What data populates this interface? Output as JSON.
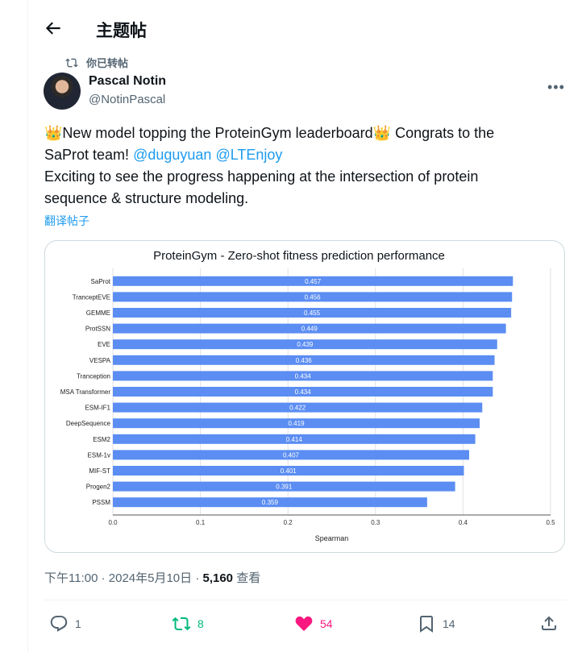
{
  "header": {
    "title": "主题帖"
  },
  "retweet": {
    "label": "你已转帖"
  },
  "author": {
    "name": "Pascal Notin",
    "handle": "@NotinPascal"
  },
  "post": {
    "line1_prefix": "New model topping the ProteinGym leaderboard",
    "line1_suffix": " Congrats to the",
    "line2_prefix": "SaProt team! ",
    "mention1": "@duguyuan",
    "mention2": "@LTEnjoy",
    "line3": "Exciting to see the progress happening at the intersection of protein",
    "line4": "sequence & structure modeling.",
    "emoji": "👑"
  },
  "translate": "翻译帖子",
  "meta": {
    "time": "下午11:00 · 2024年5月10日 · ",
    "views": "5,160",
    "views_label": " 查看"
  },
  "stats": {
    "replies": "1",
    "reposts": "8",
    "likes": "54",
    "bookmarks": "14"
  },
  "colors": {
    "accent": "#1d9bf0",
    "bar": "#5b8df2",
    "repost": "#00ba7c",
    "like": "#f91880"
  },
  "chart_data": {
    "type": "bar",
    "orientation": "horizontal",
    "title": "ProteinGym - Zero-shot fitness prediction performance",
    "xlabel": "Spearman",
    "ylabel": "",
    "xlim": [
      0,
      0.5
    ],
    "xticks": [
      "0.0",
      "0.1",
      "0.2",
      "0.3",
      "0.4",
      "0.5"
    ],
    "grid": true,
    "categories": [
      "SaProt",
      "TranceptEVE",
      "GEMME",
      "ProtSSN",
      "EVE",
      "VESPA",
      "Tranception",
      "MSA Transformer",
      "ESM-IF1",
      "DeepSequence",
      "ESM2",
      "ESM-1v",
      "MIF-ST",
      "Progen2",
      "PSSM"
    ],
    "values": [
      0.457,
      0.456,
      0.455,
      0.449,
      0.439,
      0.436,
      0.434,
      0.434,
      0.422,
      0.419,
      0.414,
      0.407,
      0.401,
      0.391,
      0.359
    ],
    "labels": [
      "0.457",
      "0.456",
      "0.455",
      "0.449",
      "0.439",
      "0.436",
      "0.434",
      "0.434",
      "0.422",
      "0.419",
      "0.414",
      "0.407",
      "0.401",
      "0.391",
      "0.359"
    ]
  }
}
